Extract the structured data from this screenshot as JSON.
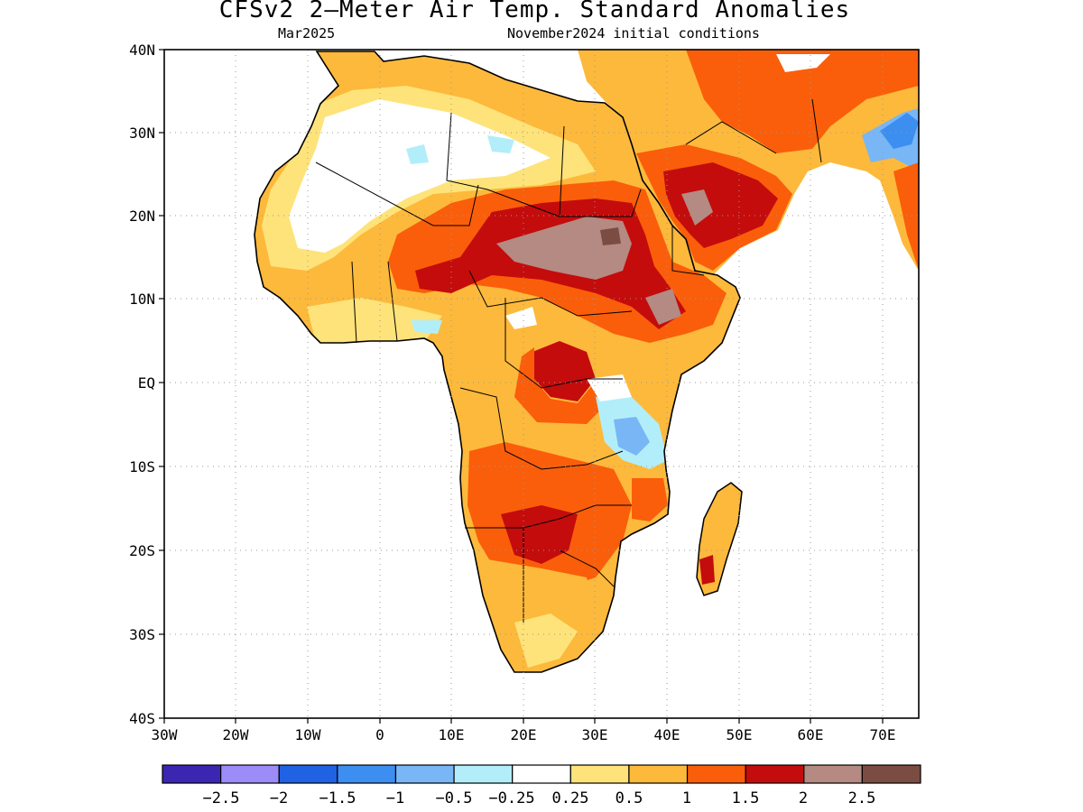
{
  "title": "CFSv2 2—Meter Air Temp. Standard Anomalies",
  "subtitle_left": "Mar2025",
  "subtitle_right": "November2024 initial conditions",
  "lat_labels": [
    "40N",
    "30N",
    "20N",
    "10N",
    "EQ",
    "10S",
    "20S",
    "30S",
    "40S"
  ],
  "lon_labels": [
    "30W",
    "20W",
    "10W",
    "0",
    "10E",
    "20E",
    "30E",
    "40E",
    "50E",
    "60E",
    "70E"
  ],
  "colorbar": {
    "colors": [
      "#3a26b0",
      "#9c8cf8",
      "#1f63e4",
      "#3c8ef0",
      "#78b6f6",
      "#b2eefa",
      "#ffffff",
      "#fee37a",
      "#fdb93b",
      "#fa5e0a",
      "#c40c0c",
      "#b48a82",
      "#7b4d42"
    ],
    "labels": [
      "−2.5",
      "−2",
      "−1.5",
      "−1",
      "−0.5",
      "−0.25",
      "0.25",
      "0.5",
      "1",
      "1.5",
      "2",
      "2.5"
    ]
  }
}
